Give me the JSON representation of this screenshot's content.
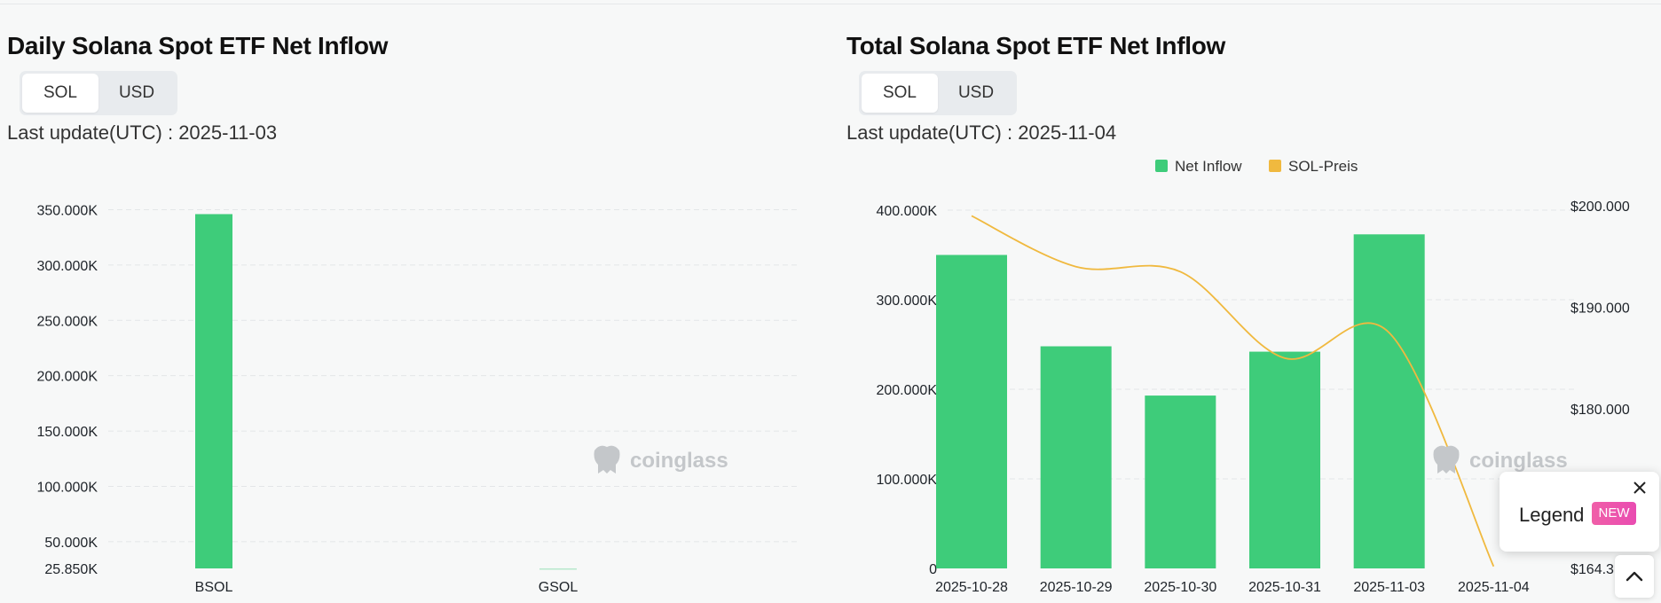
{
  "colors": {
    "bar": "#3ecc7a",
    "price_line": "#f0b93f",
    "grid": "#e3e6e8",
    "axis_text": "#1e2329",
    "watermark": "#c4c7ca"
  },
  "watermark_text": "coinglass",
  "left": {
    "title": "Daily Solana Spot ETF Net Inflow",
    "toggle": [
      "SOL",
      "USD"
    ],
    "toggle_active": "SOL",
    "last_update": "Last update(UTC) : 2025-11-03"
  },
  "right": {
    "title": "Total Solana Spot ETF Net Inflow",
    "toggle": [
      "SOL",
      "USD"
    ],
    "toggle_active": "SOL",
    "last_update": "Last update(UTC) : 2025-11-04"
  },
  "legend_popup": {
    "label": "Legend",
    "badge": "NEW"
  },
  "chart_data": [
    {
      "type": "bar",
      "title": "Daily Solana Spot ETF Net Inflow",
      "categories": [
        "BSOL",
        "GSOL"
      ],
      "values": [
        346000,
        25900
      ],
      "ylim": [
        25850,
        360000
      ],
      "yticks": [
        25850,
        50000,
        100000,
        150000,
        200000,
        250000,
        300000,
        350000
      ],
      "ytick_labels": [
        "25.850K",
        "50.000K",
        "100.000K",
        "150.000K",
        "200.000K",
        "250.000K",
        "300.000K",
        "350.000K"
      ],
      "grid": true,
      "legend": "none"
    },
    {
      "type": "bar",
      "title": "Total Solana Spot ETF Net Inflow",
      "categories": [
        "2025-10-28",
        "2025-10-29",
        "2025-10-30",
        "2025-10-31",
        "2025-11-03",
        "2025-11-04"
      ],
      "series": [
        {
          "name": "Net Inflow",
          "type": "bar",
          "axis": "left",
          "values": [
            350000,
            248000,
            193000,
            242000,
            373000,
            null
          ]
        },
        {
          "name": "SOL-Preis",
          "type": "line",
          "axis": "right",
          "values": [
            199000,
            194000,
            193500,
            185000,
            187500,
            164500
          ]
        }
      ],
      "ylim_left": [
        0,
        400000
      ],
      "yticks_left": [
        0,
        100000,
        200000,
        300000,
        400000
      ],
      "ytick_labels_left": [
        "0",
        "100.000K",
        "200.000K",
        "300.000K",
        "400.000K"
      ],
      "ylim_right": [
        164300,
        200000
      ],
      "yticks_right": [
        164300,
        180000,
        190000,
        200000
      ],
      "ytick_labels_right": [
        "$164.3",
        "$180.000",
        "$190.000",
        "$200.000"
      ],
      "grid": true,
      "legend": "top"
    }
  ]
}
